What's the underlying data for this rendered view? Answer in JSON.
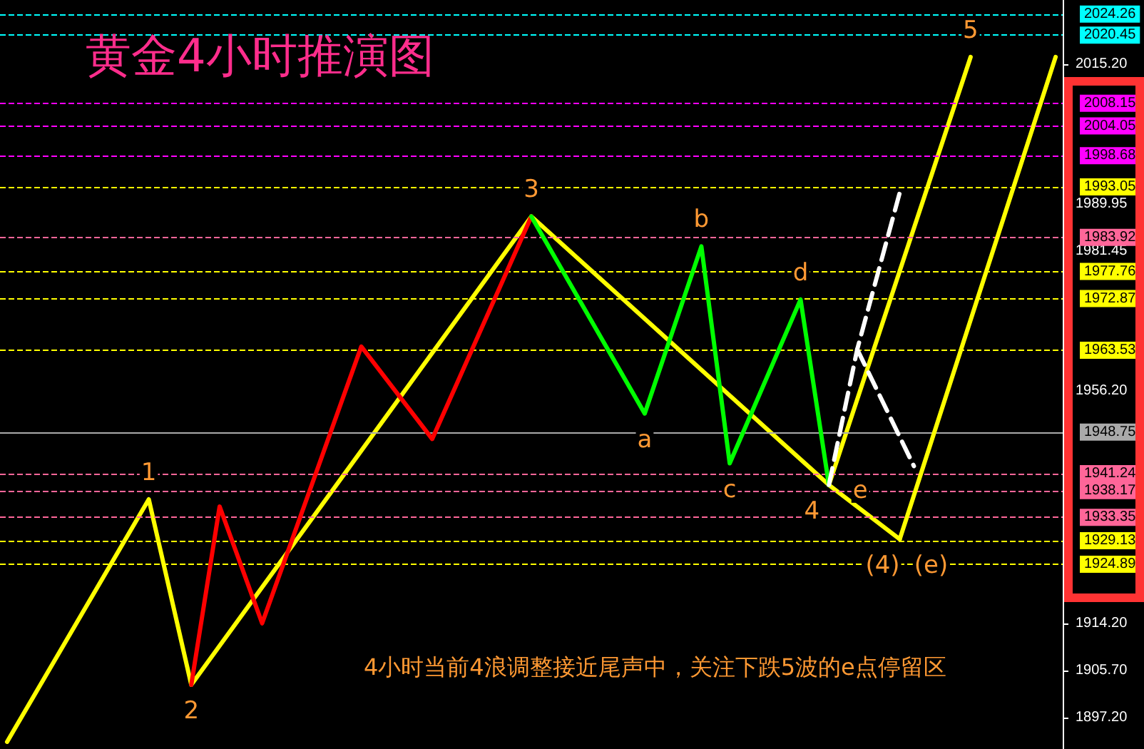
{
  "chart_data": {
    "type": "line",
    "title": "黄金4小时推演图",
    "annotations": [
      "4小时当前4浪调整接近尾声中，关注下跌5波的e点停留区",
      {
        "text": "1",
        "y": 1936.6
      },
      {
        "text": "2",
        "y": 1903.1
      },
      {
        "text": "3",
        "y": 1987.7
      },
      {
        "text": "4",
        "y": 1939.2
      },
      {
        "text": "e",
        "y": 1939.2
      },
      {
        "text": "5",
        "y": 2016.5
      },
      {
        "text": "(4)",
        "y": 1929.4
      },
      {
        "text": "(e)",
        "y": 1929.4
      },
      {
        "text": "a",
        "y": 1952.1
      },
      {
        "text": "b",
        "y": 1982.3
      },
      {
        "text": "c",
        "y": 1943.1
      },
      {
        "text": "d",
        "y": 1972.7
      }
    ],
    "categories": [
      null,
      null,
      null,
      null,
      null,
      null,
      null,
      null,
      null,
      null,
      null,
      null,
      null,
      null,
      null,
      null,
      null,
      null,
      null,
      null,
      null,
      null,
      null,
      null,
      null,
      null,
      null,
      null,
      null,
      null,
      null,
      null,
      null,
      null,
      null,
      null,
      null,
      null,
      null,
      null,
      null,
      null,
      null,
      null,
      null,
      null,
      null,
      null,
      null,
      null,
      null,
      null,
      null,
      null,
      null,
      null,
      null,
      null,
      null,
      null,
      null,
      null,
      null,
      null,
      null,
      null,
      null,
      null,
      null,
      null,
      null,
      null,
      null,
      null,
      null
    ],
    "series": [
      {
        "color": "#ffff00",
        "values": [
          1892.8,
          null,
          null,
          null,
          null,
          null,
          null,
          null,
          null,
          null,
          1936.6,
          null,
          null,
          1903.1,
          null,
          null,
          null,
          null,
          null,
          null,
          null,
          null,
          null,
          null,
          null,
          null,
          null,
          null,
          null,
          null,
          null,
          null,
          null,
          null,
          null,
          null,
          null,
          1987.7,
          null,
          null,
          null,
          null,
          null,
          null,
          null,
          null,
          null,
          null,
          null,
          null,
          null,
          null,
          null,
          null,
          null,
          null,
          null,
          null,
          1939.2,
          null,
          null,
          null,
          null,
          null,
          null,
          null,
          null,
          null,
          2016.5,
          null,
          null,
          null,
          null,
          null,
          null
        ]
      },
      {
        "color": "#ffff00",
        "values": [
          null,
          null,
          null,
          null,
          null,
          null,
          null,
          null,
          null,
          null,
          null,
          null,
          null,
          null,
          null,
          null,
          null,
          null,
          null,
          null,
          null,
          null,
          null,
          null,
          null,
          null,
          null,
          null,
          null,
          null,
          null,
          null,
          null,
          null,
          null,
          null,
          null,
          null,
          null,
          null,
          null,
          null,
          null,
          null,
          null,
          null,
          null,
          null,
          null,
          null,
          null,
          null,
          null,
          null,
          null,
          null,
          null,
          null,
          1939.2,
          null,
          null,
          null,
          null,
          1929.4,
          null,
          null,
          null,
          null,
          null,
          null,
          null,
          null,
          null,
          null,
          null
        ]
      },
      {
        "color": "#ffff00",
        "values": [
          null,
          null,
          null,
          null,
          null,
          null,
          null,
          null,
          null,
          null,
          null,
          null,
          null,
          null,
          null,
          null,
          null,
          null,
          null,
          null,
          null,
          null,
          null,
          null,
          null,
          null,
          null,
          null,
          null,
          null,
          null,
          null,
          null,
          null,
          null,
          null,
          null,
          null,
          null,
          null,
          null,
          null,
          null,
          null,
          null,
          null,
          null,
          null,
          null,
          null,
          null,
          null,
          null,
          null,
          null,
          null,
          null,
          null,
          null,
          null,
          null,
          null,
          null,
          1929.4,
          null,
          null,
          null,
          null,
          null,
          null,
          null,
          null,
          null,
          null,
          2016.5
        ]
      },
      {
        "color": "#ff0000",
        "values": [
          null,
          null,
          null,
          null,
          null,
          null,
          null,
          null,
          null,
          null,
          null,
          null,
          null,
          1903.1,
          null,
          1935.3,
          null,
          null,
          1914.2,
          null,
          null,
          null,
          null,
          null,
          null,
          1964.2,
          null,
          null,
          null,
          null,
          1947.5,
          null,
          null,
          null,
          null,
          null,
          null,
          1987.7,
          null,
          null,
          null,
          null,
          null,
          null,
          null,
          null,
          null,
          null,
          null,
          null,
          null,
          null,
          null,
          null,
          null,
          null,
          null,
          null,
          null,
          null,
          null,
          null,
          null,
          null,
          null,
          null,
          null,
          null,
          null,
          null,
          null,
          null,
          null,
          null,
          null
        ]
      },
      {
        "color": "#00ff00",
        "values": [
          null,
          null,
          null,
          null,
          null,
          null,
          null,
          null,
          null,
          null,
          null,
          null,
          null,
          null,
          null,
          null,
          null,
          null,
          null,
          null,
          null,
          null,
          null,
          null,
          null,
          null,
          null,
          null,
          null,
          null,
          null,
          null,
          null,
          null,
          null,
          null,
          null,
          1987.7,
          null,
          null,
          null,
          null,
          null,
          null,
          null,
          1952.1,
          null,
          null,
          null,
          1982.3,
          null,
          1943.1,
          null,
          null,
          null,
          null,
          1972.7,
          null,
          1939.2,
          null,
          null,
          null,
          null,
          null,
          null,
          null,
          null,
          null,
          null,
          null,
          null,
          null,
          null,
          null,
          null
        ]
      },
      {
        "color": "#ffffff",
        "line_style": "dashed",
        "values": [
          null,
          null,
          null,
          null,
          null,
          null,
          null,
          null,
          null,
          null,
          null,
          null,
          null,
          null,
          null,
          null,
          null,
          null,
          null,
          null,
          null,
          null,
          null,
          null,
          null,
          null,
          null,
          null,
          null,
          null,
          null,
          null,
          null,
          null,
          null,
          null,
          null,
          null,
          null,
          null,
          null,
          null,
          null,
          null,
          null,
          null,
          null,
          null,
          null,
          null,
          null,
          null,
          null,
          null,
          null,
          null,
          null,
          null,
          1939.2,
          null,
          1963.7,
          null,
          null,
          1992.0,
          null,
          null,
          null,
          null,
          null,
          null,
          null,
          null,
          null,
          null,
          null
        ]
      },
      {
        "color": "#ffffff",
        "line_style": "dashed",
        "values": [
          null,
          null,
          null,
          null,
          null,
          null,
          null,
          null,
          null,
          null,
          null,
          null,
          null,
          null,
          null,
          null,
          null,
          null,
          null,
          null,
          null,
          null,
          null,
          null,
          null,
          null,
          null,
          null,
          null,
          null,
          null,
          null,
          null,
          null,
          null,
          null,
          null,
          null,
          null,
          null,
          null,
          null,
          null,
          null,
          null,
          null,
          null,
          null,
          null,
          null,
          null,
          null,
          null,
          null,
          null,
          null,
          null,
          null,
          null,
          null,
          1963.7,
          null,
          null,
          null,
          1942.6,
          null,
          null,
          null,
          null,
          null,
          null,
          null,
          null,
          null,
          null
        ]
      }
    ],
    "ylim": [
      1891.5,
      2026.8
    ],
    "yticks": [
      {
        "value": 2015.2,
        "label": "2015.20"
      },
      {
        "value": 1989.95,
        "label": "1989.95"
      },
      {
        "value": 1981.45,
        "label": "1981.45"
      },
      {
        "value": 1956.2,
        "label": "1956.20"
      },
      {
        "value": 1914.2,
        "label": "1914.20"
      },
      {
        "value": 1905.7,
        "label": "1905.70"
      },
      {
        "value": 1897.2,
        "label": "1897.20"
      }
    ],
    "ref_lines": [
      {
        "axis": "y",
        "value": 2024.26,
        "label": "2024.26",
        "color": "#00ffff",
        "line_style": "dashed"
      },
      {
        "axis": "y",
        "value": 2020.45,
        "label": "2020.45",
        "color": "#00ffff",
        "line_style": "dashed"
      },
      {
        "axis": "y",
        "value": 2008.15,
        "label": "2008.15",
        "color": "#ff00ff",
        "line_style": "dashed"
      },
      {
        "axis": "y",
        "value": 2004.05,
        "label": "2004.05",
        "color": "#ff00ff",
        "line_style": "dashed"
      },
      {
        "axis": "y",
        "value": 1998.68,
        "label": "1998.68",
        "color": "#ff00ff",
        "line_style": "dashed"
      },
      {
        "axis": "y",
        "value": 1993.05,
        "label": "1993.05",
        "color": "#ffff00",
        "line_style": "dashed"
      },
      {
        "axis": "y",
        "value": 1983.92,
        "label": "1983.92",
        "color": "#ff6699",
        "line_style": "dashed"
      },
      {
        "axis": "y",
        "value": 1977.76,
        "label": "1977.76",
        "color": "#ffff00",
        "line_style": "dashed"
      },
      {
        "axis": "y",
        "value": 1972.87,
        "label": "1972.87",
        "color": "#ffff00",
        "line_style": "dashed"
      },
      {
        "axis": "y",
        "value": 1963.53,
        "label": "1963.53",
        "color": "#ffff00",
        "line_style": "dashed"
      },
      {
        "axis": "y",
        "value": 1948.75,
        "label": "1948.75",
        "color": "#aaaaaa",
        "line_style": "solid"
      },
      {
        "axis": "y",
        "value": 1941.24,
        "label": "1941.24",
        "color": "#ff6699",
        "line_style": "dashed"
      },
      {
        "axis": "y",
        "value": 1938.17,
        "label": "1938.17",
        "color": "#ff6699",
        "line_style": "dashed"
      },
      {
        "axis": "y",
        "value": 1933.35,
        "label": "1933.35",
        "color": "#ff6699",
        "line_style": "dashed"
      },
      {
        "axis": "y",
        "value": 1929.13,
        "label": "1929.13",
        "color": "#ffff00",
        "line_style": "dashed"
      },
      {
        "axis": "y",
        "value": 1924.89,
        "label": "1924.89",
        "color": "#ffff00",
        "line_style": "dashed"
      }
    ],
    "tick_labels": "y",
    "grid": false,
    "marker": "none",
    "line_style": "solid"
  }
}
